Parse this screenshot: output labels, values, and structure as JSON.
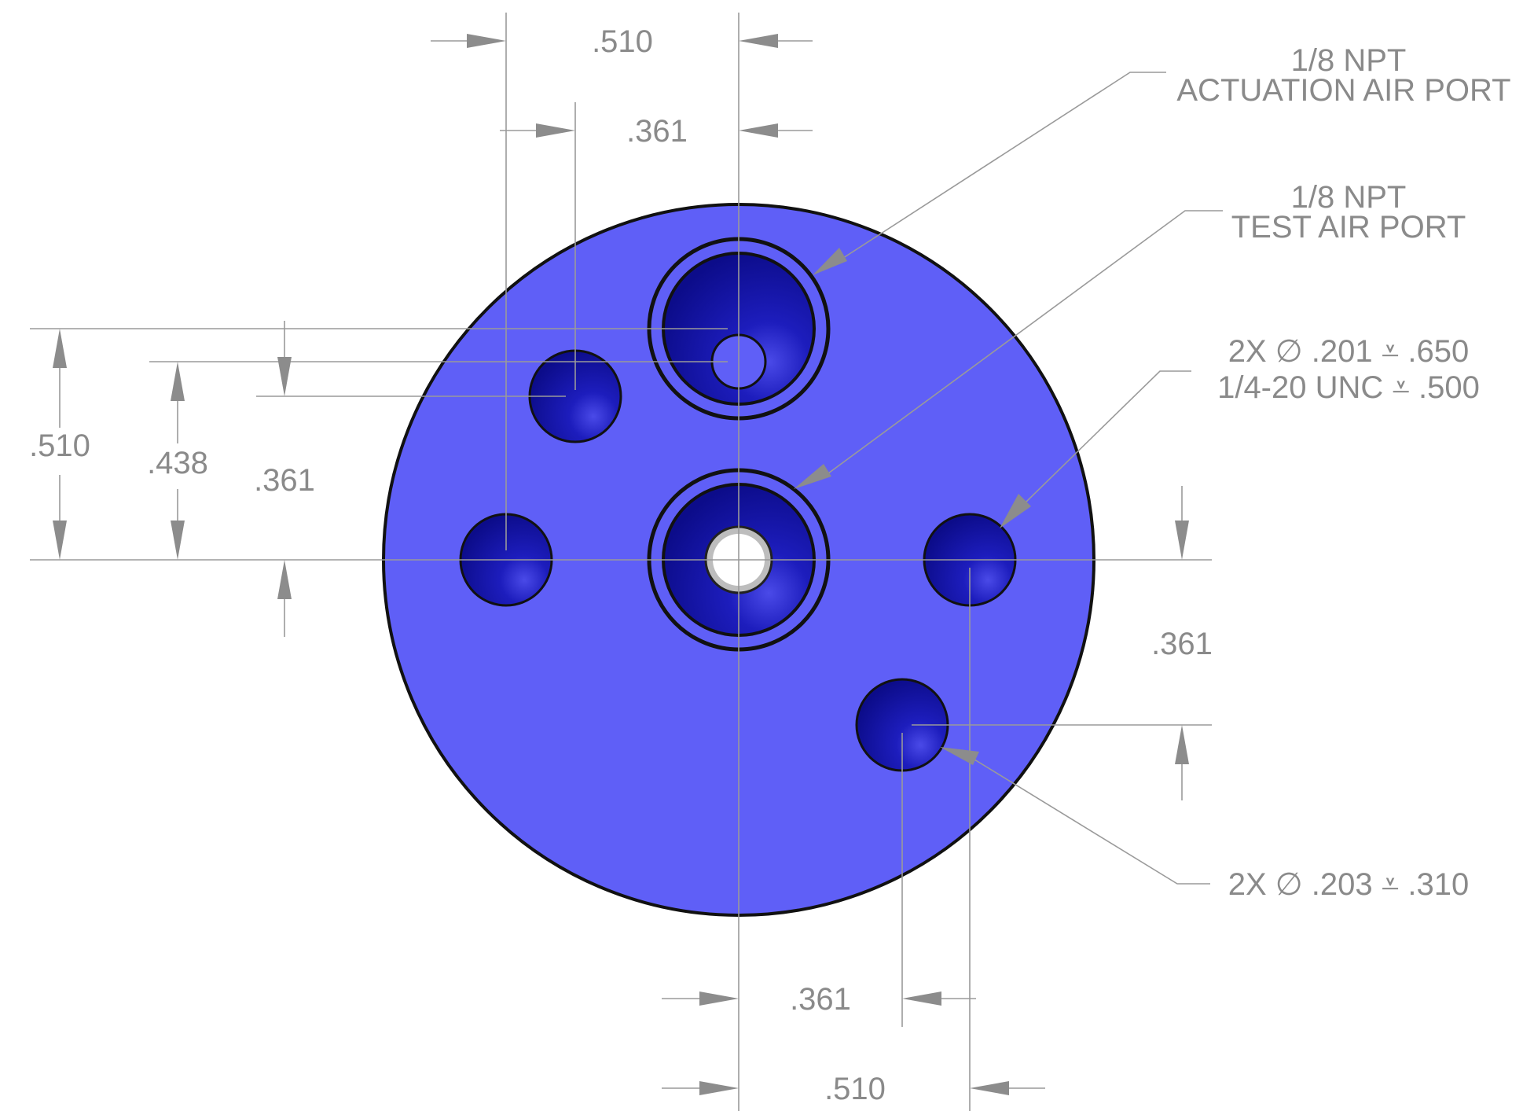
{
  "colors": {
    "part_face": "#5f5ff7",
    "hole_dark": "#1a1ab0",
    "outline": "#111111",
    "dimension_gray": "#8a8a8a"
  },
  "dimensions": {
    "top_outer": ".510",
    "top_inner": ".361",
    "left_outer": ".510",
    "left_mid": ".438",
    "left_inner": ".361",
    "right_vertical": ".361",
    "bottom_inner": ".361",
    "bottom_outer": ".510"
  },
  "callouts": {
    "actuation_port": {
      "line1": "1/8 NPT",
      "line2": "ACTUATION AIR PORT"
    },
    "test_port": {
      "line1": "1/8 NPT",
      "line2": "TEST AIR PORT"
    },
    "hole_201": {
      "line1": "2X ∅ .201 ⩡ .650",
      "line2": "1/4-20 UNC ⩡ .500"
    },
    "hole_203": {
      "line1": "2X ∅ .203 ⩡ .310"
    }
  }
}
